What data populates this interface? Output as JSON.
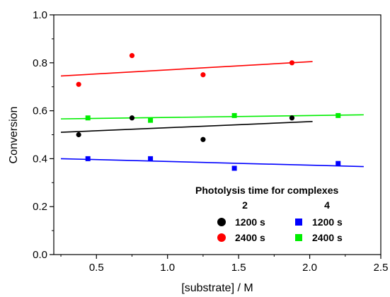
{
  "chart_data": {
    "type": "scatter",
    "title": "",
    "xlabel": "[substrate] / M",
    "ylabel": "Conversion",
    "xlim": [
      0.2,
      2.5
    ],
    "ylim": [
      0.0,
      1.0
    ],
    "x_ticks": [
      "0.5",
      "1.0",
      "1.5",
      "2.0",
      "2.5"
    ],
    "y_ticks": [
      "0.0",
      "0.2",
      "0.4",
      "0.6",
      "0.8",
      "1.0"
    ],
    "grid": false,
    "legend": {
      "title": "Photolysis time for complexes",
      "placement": "bottom-right",
      "group_labels": [
        "2",
        "4"
      ]
    },
    "series": [
      {
        "name": "1200 s",
        "group": "2",
        "color": "#000000",
        "marker": "circle",
        "points": [
          [
            0.375,
            0.5
          ],
          [
            0.75,
            0.57
          ],
          [
            1.25,
            0.48
          ],
          [
            1.875,
            0.57
          ]
        ],
        "fit": [
          [
            0.25,
            0.51
          ],
          [
            2.02,
            0.555
          ]
        ]
      },
      {
        "name": "2400 s",
        "group": "2",
        "color": "#ff0000",
        "marker": "circle",
        "points": [
          [
            0.375,
            0.71
          ],
          [
            0.75,
            0.83
          ],
          [
            1.25,
            0.75
          ],
          [
            1.875,
            0.8
          ]
        ],
        "fit": [
          [
            0.25,
            0.745
          ],
          [
            2.02,
            0.805
          ]
        ]
      },
      {
        "name": "1200 s",
        "group": "4",
        "color": "#0000ff",
        "marker": "square",
        "points": [
          [
            0.44,
            0.4
          ],
          [
            0.88,
            0.4
          ],
          [
            1.47,
            0.36
          ],
          [
            2.2,
            0.38
          ]
        ],
        "fit": [
          [
            0.25,
            0.4
          ],
          [
            2.38,
            0.367
          ]
        ]
      },
      {
        "name": "2400 s",
        "group": "4",
        "color": "#00ee00",
        "marker": "square",
        "points": [
          [
            0.44,
            0.57
          ],
          [
            0.88,
            0.56
          ],
          [
            1.47,
            0.58
          ],
          [
            2.2,
            0.58
          ]
        ],
        "fit": [
          [
            0.25,
            0.566
          ],
          [
            2.38,
            0.583
          ]
        ]
      }
    ]
  }
}
